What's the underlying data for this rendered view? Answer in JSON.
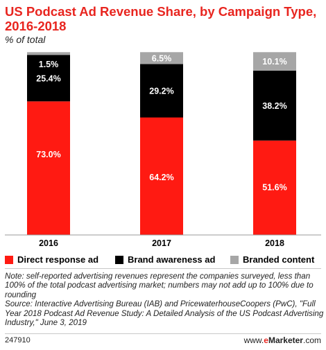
{
  "header": {
    "title": "US Podcast Ad Revenue Share, by Campaign Type, 2016-2018",
    "subtitle": "% of total"
  },
  "colors": {
    "direct_response": "#ff1a12",
    "brand_awareness": "#000000",
    "branded_content": "#a6a6a6",
    "accent": "#e8251f"
  },
  "chart_data": {
    "type": "bar",
    "stacked": true,
    "categories": [
      "2016",
      "2017",
      "2018"
    ],
    "series": [
      {
        "name": "Direct response ad",
        "values": [
          73.0,
          64.2,
          51.6
        ],
        "labels": [
          "73.0%",
          "64.2%",
          "51.6%"
        ]
      },
      {
        "name": "Brand awareness ad",
        "values": [
          25.4,
          29.2,
          38.2
        ],
        "labels": [
          "25.4%",
          "29.2%",
          "38.2%"
        ]
      },
      {
        "name": "Branded content",
        "values": [
          1.5,
          6.5,
          10.1
        ],
        "labels": [
          "1.5%",
          "6.5%",
          "10.1%"
        ]
      }
    ],
    "ylim": [
      0,
      100
    ],
    "grid": false,
    "legend_position": "bottom"
  },
  "legend": {
    "items": [
      "Direct response ad",
      "Brand awareness ad",
      "Branded content"
    ]
  },
  "notes": {
    "note": "Note: self-reported advertising revenues represent the companies surveyed, less than 100% of the total podcast advertising market; numbers may not add up to 100% due to rounding",
    "source": "Source: Interactive Advertising Bureau (IAB) and PricewaterhouseCoopers (PwC), \"Full Year 2018 Podcast Ad Revenue Study: A Detailed Analysis of the US Podcast Advertising Industry,\" June 3, 2019"
  },
  "footer": {
    "chart_id": "247910",
    "brand_prefix": "www.",
    "brand_accent": "e",
    "brand_name": "Marketer",
    "brand_suffix": ".com"
  }
}
